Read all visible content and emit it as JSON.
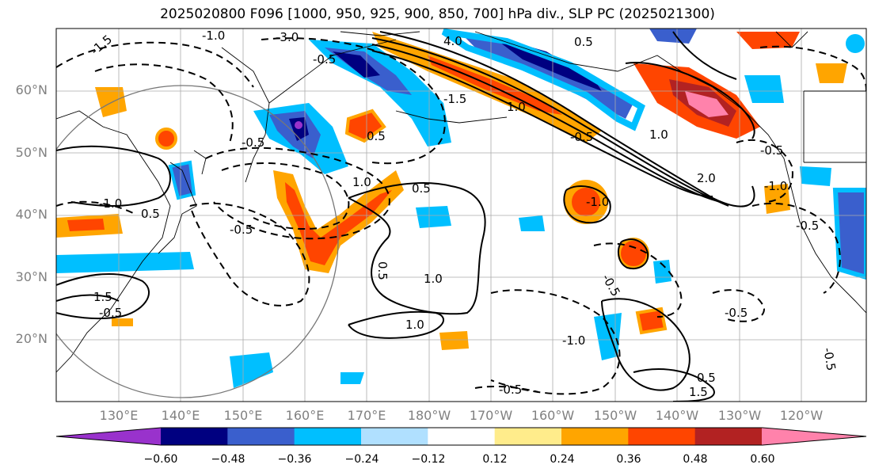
{
  "title": "2025020800 F096 [1000, 950, 925, 900, 850, 700] hPa div., SLP PC (2025021300)",
  "map": {
    "lat_labels": [
      "60°N",
      "50°N",
      "40°N",
      "30°N",
      "20°N"
    ],
    "lon_labels": [
      "130°E",
      "140°E",
      "150°E",
      "160°E",
      "170°E",
      "180°W",
      "170°W",
      "160°W",
      "150°W",
      "140°W",
      "130°W",
      "120°W"
    ],
    "contour_labels": [
      "-3.0",
      "4.0",
      "0.5",
      "-1.5",
      "-1.0",
      "-0.5",
      "-1.5",
      "1.0",
      "-0.5",
      "0.5",
      "1.0",
      "-1.0",
      "0.5",
      "1.5",
      "-0.5",
      "-0.5",
      "0.5",
      "1.0",
      "1.0",
      "-1.0",
      "0.5",
      "-0.5",
      "0.5",
      "-0.5",
      "1.5",
      "-0.5",
      "-1.0",
      "-0.5",
      "-0.5",
      "1.0",
      "-1.0",
      "2.0",
      "-0.5",
      "-0.5"
    ],
    "colors": {
      "neg_060": "#9932cc",
      "neg_048": "#000080",
      "neg_036": "#3a5fcd",
      "neg_024": "#00bfff",
      "neg_012": "#b0e0ff",
      "pos_012": "#ffec8b",
      "pos_024": "#ffa500",
      "pos_036": "#ff4500",
      "pos_048": "#b22222",
      "pos_060": "#ff82ab"
    }
  },
  "colorbar": {
    "ticks": [
      "−0.60",
      "−0.48",
      "−0.36",
      "−0.24",
      "−0.12",
      "0.12",
      "0.24",
      "0.36",
      "0.48",
      "0.60"
    ],
    "colors": [
      "#9932cc",
      "#000080",
      "#3a5fcd",
      "#00bfff",
      "#b0e0ff",
      "#ffffff",
      "#ffec8b",
      "#ffa500",
      "#ff4500",
      "#b22222",
      "#ff82ab"
    ]
  }
}
